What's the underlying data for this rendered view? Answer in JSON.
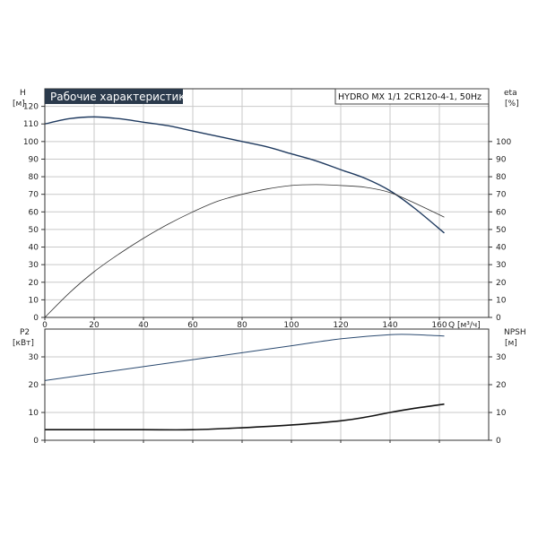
{
  "chart_data": [
    {
      "type": "line",
      "title": "Рабочие характеристики",
      "subtitle": "HYDRO MX 1/1 2CR120-4-1, 50Hz",
      "x_axis": {
        "label": "Q [м³/ч]",
        "ticks": [
          0,
          20,
          40,
          60,
          80,
          100,
          120,
          140,
          160
        ],
        "range": [
          0,
          180
        ]
      },
      "y_left": {
        "label_top": "H",
        "label_unit": "[м]",
        "ticks": [
          0,
          10,
          20,
          30,
          40,
          50,
          60,
          70,
          80,
          90,
          100,
          110,
          120
        ],
        "range": [
          0,
          130
        ]
      },
      "y_right": {
        "label_top": "eta",
        "label_unit": "[%]",
        "ticks": [
          0,
          10,
          20,
          30,
          40,
          50,
          60,
          70,
          80,
          90,
          100
        ],
        "range": [
          0,
          130
        ]
      },
      "grid": true,
      "series": [
        {
          "axis": "left",
          "color": "#1f3a5f",
          "x": [
            0,
            10,
            20,
            30,
            40,
            50,
            60,
            70,
            80,
            90,
            100,
            110,
            120,
            130,
            140,
            150,
            162
          ],
          "values": [
            110,
            113,
            114,
            113,
            111,
            109,
            106,
            103,
            100,
            97,
            93,
            89,
            84,
            79,
            72,
            62,
            48
          ]
        },
        {
          "axis": "right",
          "color": "#333333",
          "x": [
            0,
            10,
            20,
            30,
            40,
            50,
            60,
            70,
            80,
            90,
            100,
            110,
            120,
            130,
            140,
            150,
            162
          ],
          "values": [
            0,
            14,
            26,
            36,
            45,
            53,
            60,
            66,
            70,
            73,
            75,
            75.5,
            75,
            74,
            71,
            65,
            57
          ]
        }
      ]
    },
    {
      "type": "line",
      "x_axis": {
        "ticks": [
          0,
          20,
          40,
          60,
          80,
          100,
          120,
          140,
          160
        ],
        "range": [
          0,
          180
        ]
      },
      "y_left": {
        "label_top": "P2",
        "label_unit": "[кВт]",
        "ticks": [
          0,
          10,
          20,
          30
        ],
        "range": [
          0,
          40
        ]
      },
      "y_right": {
        "label_top": "NPSH",
        "label_unit": "[м]",
        "ticks": [
          0,
          10,
          20,
          30
        ],
        "range": [
          0,
          40
        ]
      },
      "grid": true,
      "series": [
        {
          "axis": "left",
          "color": "#2b4a70",
          "x": [
            0,
            20,
            40,
            60,
            80,
            100,
            120,
            140,
            150,
            162
          ],
          "values": [
            21.5,
            24,
            26.5,
            29,
            31.5,
            34,
            36.5,
            38,
            38,
            37.5
          ]
        },
        {
          "axis": "right",
          "color": "#111111",
          "x": [
            0,
            20,
            40,
            60,
            80,
            100,
            120,
            130,
            140,
            150,
            162
          ],
          "values": [
            3.8,
            3.8,
            3.8,
            3.8,
            4.5,
            5.5,
            7,
            8.3,
            10,
            11.5,
            13
          ]
        }
      ]
    }
  ]
}
